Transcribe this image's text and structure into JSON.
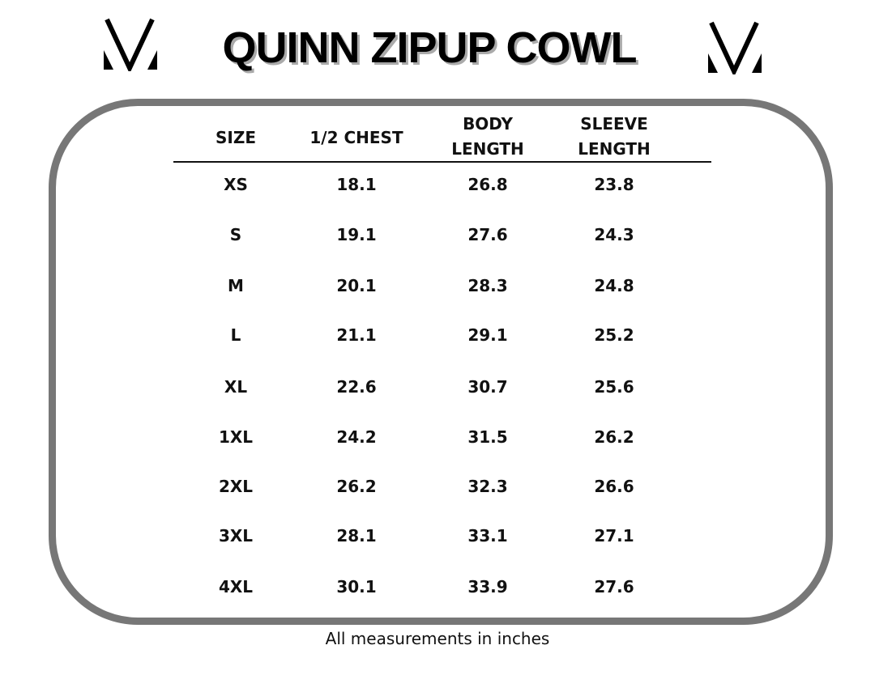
{
  "title": "QUINN ZIPUP COWL",
  "logo_icon": "mv-logo-icon",
  "frame_color": "#777777",
  "table": {
    "headers": [
      "SIZE",
      "1/2 CHEST",
      "BODY LENGTH",
      "SLEEVE LENGTH"
    ],
    "header_lines": [
      [
        "SIZE"
      ],
      [
        "1/2 CHEST"
      ],
      [
        "BODY",
        "LENGTH"
      ],
      [
        "SLEEVE",
        "LENGTH"
      ]
    ],
    "rows": [
      [
        "XS",
        "18.1",
        "26.8",
        "23.8"
      ],
      [
        "S",
        "19.1",
        "27.6",
        "24.3"
      ],
      [
        "M",
        "20.1",
        "28.3",
        "24.8"
      ],
      [
        "L",
        "21.1",
        "29.1",
        "25.2"
      ],
      [
        "XL",
        "22.6",
        "30.7",
        "25.6"
      ],
      [
        "1XL",
        "24.2",
        "31.5",
        "26.2"
      ],
      [
        "2XL",
        "26.2",
        "32.3",
        "26.6"
      ],
      [
        "3XL",
        "28.1",
        "33.1",
        "27.1"
      ],
      [
        "4XL",
        "30.1",
        "33.9",
        "27.6"
      ]
    ]
  },
  "footnote": "All measurements in inches"
}
